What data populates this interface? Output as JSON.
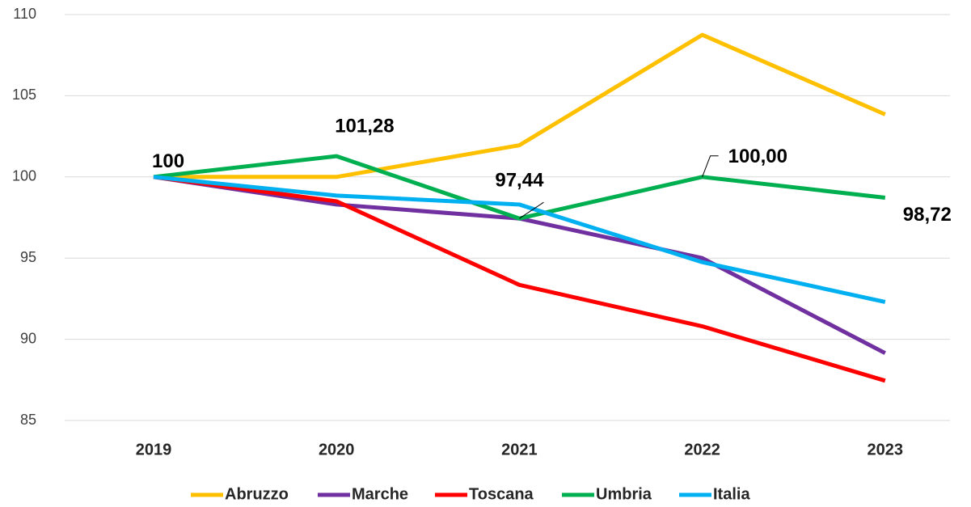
{
  "chart_data": {
    "type": "line",
    "categories": [
      "2019",
      "2020",
      "2021",
      "2022",
      "2023"
    ],
    "series": [
      {
        "name": "Abruzzo",
        "color": "#FFC000",
        "values": [
          100,
          100,
          101.95,
          108.75,
          103.85
        ]
      },
      {
        "name": "Marche",
        "color": "#7030A0",
        "values": [
          100,
          98.3,
          97.44,
          95.0,
          89.15
        ]
      },
      {
        "name": "Toscana",
        "color": "#FF0000",
        "values": [
          100,
          98.5,
          93.35,
          90.8,
          87.45
        ]
      },
      {
        "name": "Umbria",
        "color": "#00B050",
        "values": [
          100,
          101.28,
          97.44,
          100.0,
          98.72
        ],
        "value_labels": [
          "100",
          "101,28",
          "97,44",
          "100,00",
          "98,72"
        ]
      },
      {
        "name": "Italia",
        "color": "#00B0F0",
        "values": [
          100,
          98.85,
          98.3,
          94.75,
          92.3
        ]
      }
    ],
    "ylim": [
      85,
      110
    ],
    "yticks": [
      85,
      90,
      95,
      100,
      105,
      110
    ],
    "grid": true,
    "legend": "bottom"
  }
}
